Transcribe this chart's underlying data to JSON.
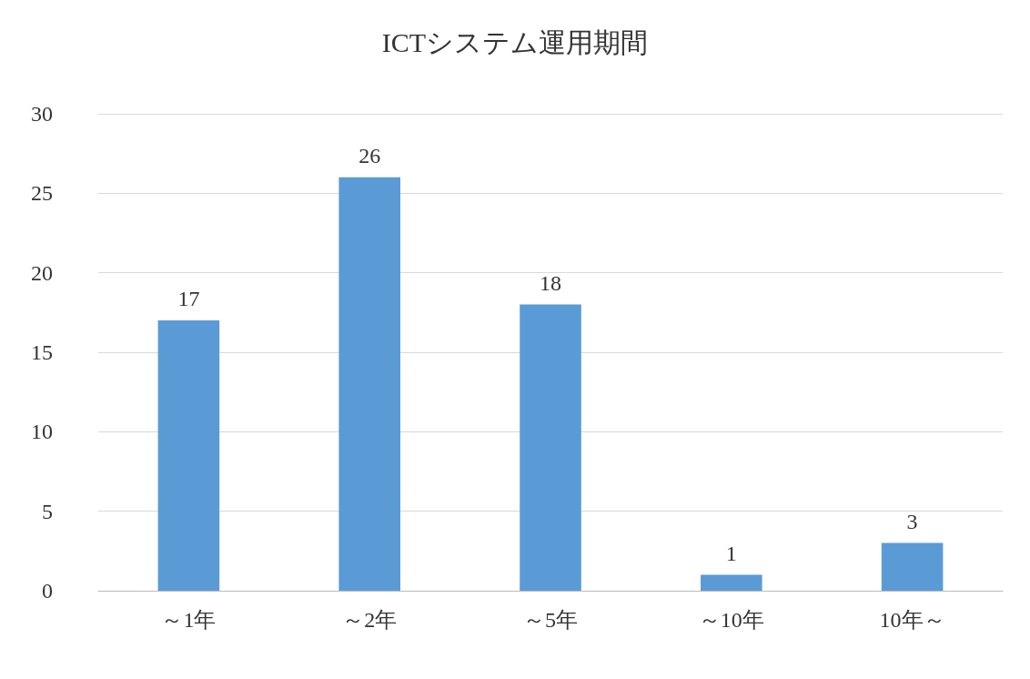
{
  "chart_data": {
    "type": "bar",
    "title": "ICTシステム運用期間",
    "categories": [
      "～1年",
      "～2年",
      "～5年",
      "～10年",
      "10年～"
    ],
    "values": [
      17,
      26,
      18,
      1,
      3
    ],
    "color": "#5b9bd5",
    "ylim": [
      0,
      30
    ],
    "yticks": [
      0,
      5,
      10,
      15,
      20,
      25,
      30
    ],
    "grid": "y",
    "data_labels": true
  }
}
